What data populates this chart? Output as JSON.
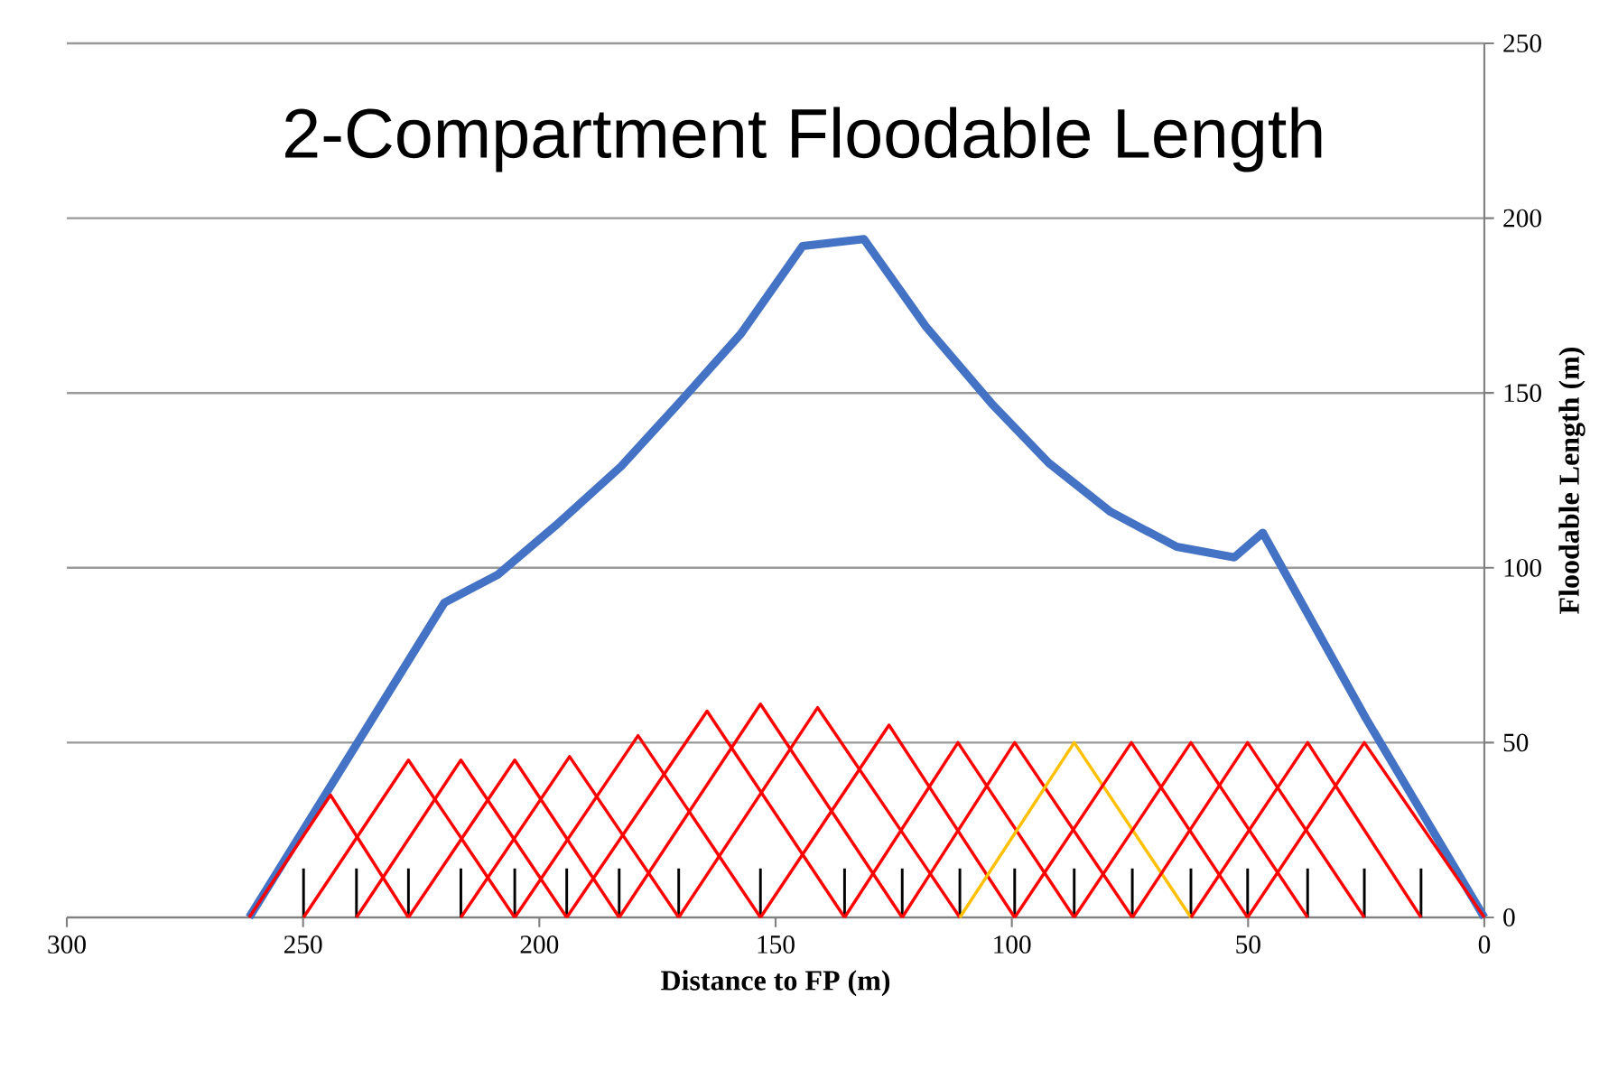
{
  "chart_data": {
    "type": "line",
    "title": "2-Compartment Floodable Length",
    "xlabel": "Distance to FP (m)",
    "ylabel": "Floodable Length (m)",
    "xlim": [
      300,
      0
    ],
    "xticks": [
      300,
      250,
      200,
      150,
      100,
      50,
      0
    ],
    "ylim": [
      0,
      250
    ],
    "yticks": [
      0,
      50,
      100,
      150,
      200,
      250
    ],
    "grid": "y",
    "marker": "none",
    "line_style": "solid",
    "series": [
      {
        "type": "bar",
        "color": "#000000",
        "x": [
          249.9,
          238.7,
          227.7,
          216.6,
          205.2,
          194.2,
          183.1,
          170.5,
          153.2,
          135.4,
          123.2,
          111.0,
          99.4,
          86.8,
          74.5,
          62.1,
          50.1,
          37.4,
          25.4,
          13.4
        ],
        "values": [
          14,
          14,
          14,
          14,
          14,
          14,
          14,
          14,
          14,
          14,
          14,
          14,
          14,
          14,
          14,
          14,
          14,
          14,
          14,
          14
        ]
      },
      {
        "type": "line",
        "color": "#4472c4",
        "x": [
          261.4,
          220.1,
          208.8,
          196.6,
          182.7,
          170.5,
          157.3,
          144.3,
          131.3,
          118.2,
          104.3,
          92.2,
          79.1,
          65.1,
          52.9,
          46.9,
          25.1,
          0
        ],
        "values": [
          0,
          90,
          98,
          112,
          129,
          147,
          167,
          192,
          194,
          169,
          147,
          130,
          116,
          106,
          103,
          110,
          57,
          0
        ]
      },
      {
        "color": "#ff0000",
        "x": [
          261.4,
          244.2,
          227.7
        ],
        "values": [
          0,
          35,
          0
        ]
      },
      {
        "color": "#ff0000",
        "x": [
          249.9,
          227.7,
          205.2
        ],
        "values": [
          0,
          45,
          0
        ]
      },
      {
        "color": "#ff0000",
        "x": [
          238.7,
          216.6,
          194.2
        ],
        "values": [
          0,
          45,
          0
        ]
      },
      {
        "color": "#ff0000",
        "x": [
          227.7,
          205.2,
          183.1
        ],
        "values": [
          0,
          45,
          0
        ]
      },
      {
        "color": "#ff0000",
        "x": [
          216.6,
          193.6,
          170.5
        ],
        "values": [
          0,
          46,
          0
        ]
      },
      {
        "color": "#ff0000",
        "x": [
          205.2,
          179.1,
          153.2
        ],
        "values": [
          0,
          52,
          0
        ]
      },
      {
        "color": "#ff0000",
        "x": [
          194.2,
          164.5,
          135.4
        ],
        "values": [
          0,
          59,
          0
        ]
      },
      {
        "color": "#ff0000",
        "x": [
          183.1,
          153.2,
          123.2
        ],
        "values": [
          0,
          61,
          0
        ]
      },
      {
        "color": "#ff0000",
        "x": [
          170.5,
          141.1,
          111.0
        ],
        "values": [
          0,
          60,
          0
        ]
      },
      {
        "color": "#ff0000",
        "x": [
          153.2,
          126.0,
          99.4
        ],
        "values": [
          0,
          55,
          0
        ]
      },
      {
        "color": "#ff0000",
        "x": [
          135.4,
          111.4,
          86.8
        ],
        "values": [
          0,
          50,
          0
        ]
      },
      {
        "color": "#ff0000",
        "x": [
          123.2,
          99.4,
          74.5
        ],
        "values": [
          0,
          50,
          0
        ]
      },
      {
        "color": "#ffc000",
        "x": [
          111.0,
          86.8,
          62.1
        ],
        "values": [
          0,
          50,
          0
        ]
      },
      {
        "color": "#ff0000",
        "x": [
          99.4,
          74.7,
          50.1
        ],
        "values": [
          0,
          50,
          0
        ]
      },
      {
        "color": "#ff0000",
        "x": [
          86.8,
          62.1,
          37.4
        ],
        "values": [
          0,
          50,
          0
        ]
      },
      {
        "color": "#ff0000",
        "x": [
          74.5,
          50.1,
          25.4
        ],
        "values": [
          0,
          50,
          0
        ]
      },
      {
        "color": "#ff0000",
        "x": [
          62.1,
          37.4,
          13.4
        ],
        "values": [
          0,
          50,
          0
        ]
      },
      {
        "color": "#ff0000",
        "x": [
          50.1,
          25.4,
          0
        ],
        "values": [
          0,
          50,
          0
        ]
      }
    ]
  }
}
